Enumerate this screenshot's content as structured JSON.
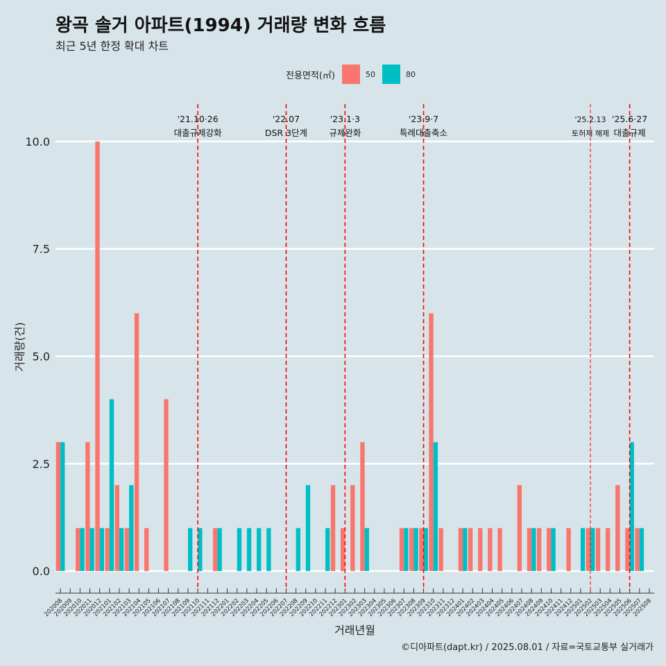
{
  "title": "왕곡 솔거 아파트(1994) 거래량 변화 흐름",
  "subtitle": "최근 5년 한정 확대 차트",
  "footer": "©디아파트(dapt.kr) / 2025.08.01 / 자료=국토교통부 실거래가",
  "colors": {
    "s50": "#F8766D",
    "s80": "#00BFC4",
    "bg": "#d7e4ea",
    "event": "#ff0000"
  },
  "chart_data": {
    "type": "bar",
    "xlabel": "거래년월",
    "ylabel": "거래량(건)",
    "ylim": [
      -0.45,
      11.0
    ],
    "yticks": [
      0,
      2.5,
      5,
      7.5,
      10
    ],
    "ytick_labels": [
      "0.0",
      "2.5",
      "5.0",
      "7.5",
      "10.0"
    ],
    "legend": {
      "title": "전용면적(㎡)",
      "position": "top"
    },
    "categories": [
      "202008",
      "202009",
      "202010",
      "202011",
      "202012",
      "202101",
      "202102",
      "202103",
      "202104",
      "202105",
      "202106",
      "202107",
      "202108",
      "202109",
      "202110",
      "202111",
      "202112",
      "202201",
      "202202",
      "202203",
      "202204",
      "202205",
      "202206",
      "202207",
      "202208",
      "202209",
      "202210",
      "202211",
      "202212",
      "202301",
      "202302",
      "202303",
      "202304",
      "202305",
      "202306",
      "202307",
      "202308",
      "202309",
      "202310",
      "202311",
      "202312",
      "202401",
      "202402",
      "202403",
      "202404",
      "202405",
      "202406",
      "202407",
      "202408",
      "202409",
      "202410",
      "202411",
      "202412",
      "202501",
      "202502",
      "202503",
      "202504",
      "202505",
      "202506",
      "202507",
      "202508"
    ],
    "series": [
      {
        "name": "50",
        "values": [
          3,
          0,
          1,
          3,
          10,
          1,
          2,
          1,
          6,
          1,
          0,
          4,
          0,
          0,
          0,
          0,
          1,
          0,
          0,
          0,
          0,
          0,
          0,
          0,
          0,
          0,
          0,
          0,
          2,
          1,
          2,
          3,
          0,
          0,
          0,
          1,
          1,
          1,
          6,
          1,
          0,
          1,
          1,
          1,
          1,
          1,
          0,
          2,
          1,
          1,
          1,
          0,
          1,
          0,
          1,
          1,
          1,
          2,
          1,
          1,
          0
        ]
      },
      {
        "name": "80",
        "values": [
          3,
          0,
          1,
          1,
          1,
          4,
          1,
          2,
          0,
          0,
          0,
          0,
          0,
          1,
          1,
          0,
          1,
          0,
          1,
          1,
          1,
          1,
          0,
          0,
          1,
          2,
          0,
          1,
          0,
          0,
          0,
          1,
          0,
          0,
          0,
          1,
          1,
          1,
          3,
          0,
          0,
          1,
          0,
          0,
          0,
          0,
          0,
          0,
          1,
          0,
          1,
          0,
          0,
          1,
          1,
          0,
          0,
          0,
          3,
          1,
          0
        ]
      }
    ],
    "events": [
      {
        "date": "'21.10·26",
        "label": "대출규제강화",
        "at": 14.5,
        "style": "bold"
      },
      {
        "date": "'22.07",
        "label": "DSR 3단계",
        "at": 23.5,
        "style": "bold"
      },
      {
        "date": "'23.1·3",
        "label": "규제완화",
        "at": 29.5,
        "style": "bold"
      },
      {
        "date": "'23.9·7",
        "label": "특례대출축소",
        "at": 37.5,
        "style": "bold"
      },
      {
        "date": "'25.2.13",
        "label": "토허제 해제",
        "at": 54.5,
        "style": "thin"
      },
      {
        "date": "'25.6·27",
        "label": "대출규제",
        "at": 58.5,
        "style": "bold"
      }
    ]
  }
}
